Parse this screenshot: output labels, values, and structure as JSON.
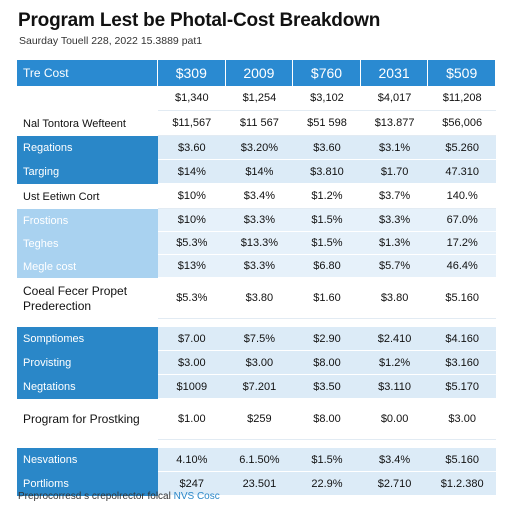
{
  "title": "Program Lest be Photal-Cost Breakdown",
  "subtitle": "Saurday Touell 228, 2022 15.3889 pat1",
  "table": {
    "header": [
      "Tre Cost",
      "$309",
      "2009",
      "$760",
      "2031",
      "$509"
    ],
    "rows": [
      {
        "label": "",
        "style": "plain",
        "values": [
          "$1,340",
          "$1,254",
          "$3,102",
          "$4,017",
          "$11,208"
        ]
      },
      {
        "label": "Nal Tontora Wefteent",
        "style": "plain",
        "values": [
          "$11,567",
          "$11 567",
          "$51 598",
          "$13.877",
          "$56,006"
        ]
      },
      {
        "label": "Regations",
        "style": "blue",
        "values": [
          "$3.60",
          "$3.20%",
          "$3.60",
          "$3.1%",
          "$5.260"
        ]
      },
      {
        "label": "Targing",
        "style": "blue",
        "values": [
          "$14%",
          "$14%",
          "$3.810",
          "$1.70",
          "47.310"
        ]
      },
      {
        "label": "Ust Eetiwn Cort",
        "style": "plain",
        "values": [
          "$10%",
          "$3.4%",
          "$1.2%",
          "$3.7%",
          "140.%"
        ]
      },
      {
        "label": "Frostions",
        "style": "lite",
        "values": [
          "$10%",
          "$3.3%",
          "$1.5%",
          "$3.3%",
          "67.0%"
        ]
      },
      {
        "label": "Teghes",
        "style": "lite",
        "values": [
          "$5.3%",
          "$13.3%",
          "$1.5%",
          "$1.3%",
          "17.2%"
        ]
      },
      {
        "label": "Megle cost",
        "style": "lite",
        "values": [
          "$13%",
          "$3.3%",
          "$6.80",
          "$5.7%",
          "46.4%"
        ]
      },
      {
        "label": "Coeal Fecer Propet Prederection",
        "style": "tall",
        "values": [
          "$5.3%",
          "$3.80",
          "$1.60",
          "$3.80",
          "$5.160"
        ]
      },
      {
        "label": "",
        "style": "gap",
        "values": [
          "",
          "",
          "",
          "",
          ""
        ]
      },
      {
        "label": "Somptiomes",
        "style": "blue",
        "values": [
          "$7.00",
          "$7.5%",
          "$2.90",
          "$2.410",
          "$4.160"
        ]
      },
      {
        "label": "Provisting",
        "style": "blue",
        "values": [
          "$3.00",
          "$3.00",
          "$8.00",
          "$1.2%",
          "$3.160"
        ]
      },
      {
        "label": "Negtations",
        "style": "blue",
        "values": [
          "$1009",
          "$7.201",
          "$3.50",
          "$3.110",
          "$5.170"
        ]
      },
      {
        "label": "Program for Prostking",
        "style": "tall",
        "values": [
          "$1.00",
          "$259",
          "$8.00",
          "$0.00",
          "$3.00"
        ]
      },
      {
        "label": "",
        "style": "gap",
        "values": [
          "",
          "",
          "",
          "",
          ""
        ]
      },
      {
        "label": "Nesvations",
        "style": "blue",
        "values": [
          "4.10%",
          "6.1.50%",
          "$1.5%",
          "$3.4%",
          "$5.160"
        ]
      },
      {
        "label": "Portlioms",
        "style": "blue",
        "values": [
          "$247",
          "23.501",
          "22.9%",
          "$2.710",
          "$1.2.380"
        ]
      }
    ]
  },
  "footnote": {
    "text": "Preprocorresd s crepolrector folcal ",
    "link": "NVS Cosc"
  },
  "colors": {
    "header_bg": "#2a8ad1",
    "label_blue": "#2a87c8",
    "label_light": "#a9d2f0",
    "cell_blue": "#dcebf7"
  }
}
